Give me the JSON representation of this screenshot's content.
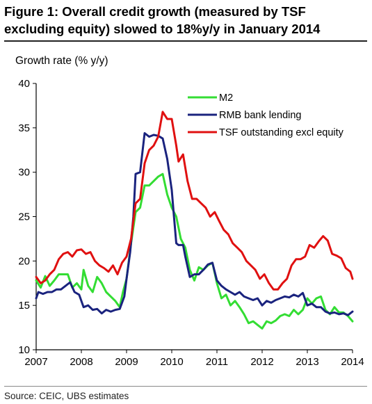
{
  "title": "Figure 1: Overall credit growth (measured by TSF excluding equity) slowed to 18%y/y in January 2014",
  "source": "Source: CEIC, UBS estimates",
  "chart_data": {
    "type": "line",
    "ylabel": "Growth rate (% y/y)",
    "xlabel": "",
    "ylim": [
      10,
      40
    ],
    "yticks": [
      10,
      15,
      20,
      25,
      30,
      35,
      40
    ],
    "xlim": [
      2007,
      2014
    ],
    "xticks": [
      2007,
      2008,
      2009,
      2010,
      2011,
      2012,
      2013,
      2014
    ],
    "legend_position": "top-right",
    "series": [
      {
        "name": "M2",
        "color": "#33dd33",
        "points": [
          [
            2007.0,
            17.8
          ],
          [
            2007.1,
            17.0
          ],
          [
            2007.2,
            18.3
          ],
          [
            2007.3,
            17.2
          ],
          [
            2007.4,
            17.8
          ],
          [
            2007.5,
            18.5
          ],
          [
            2007.6,
            18.5
          ],
          [
            2007.7,
            18.5
          ],
          [
            2007.8,
            17.0
          ],
          [
            2007.9,
            17.5
          ],
          [
            2008.0,
            16.8
          ],
          [
            2008.05,
            19.0
          ],
          [
            2008.15,
            17.2
          ],
          [
            2008.25,
            16.5
          ],
          [
            2008.35,
            18.2
          ],
          [
            2008.45,
            17.5
          ],
          [
            2008.55,
            16.5
          ],
          [
            2008.65,
            16.0
          ],
          [
            2008.75,
            15.5
          ],
          [
            2008.85,
            14.8
          ],
          [
            2008.92,
            16.5
          ],
          [
            2009.0,
            18.0
          ],
          [
            2009.1,
            22.0
          ],
          [
            2009.2,
            25.5
          ],
          [
            2009.3,
            26.0
          ],
          [
            2009.4,
            28.5
          ],
          [
            2009.5,
            28.5
          ],
          [
            2009.6,
            29.0
          ],
          [
            2009.7,
            29.5
          ],
          [
            2009.8,
            29.8
          ],
          [
            2009.9,
            27.5
          ],
          [
            2010.0,
            26.0
          ],
          [
            2010.1,
            25.0
          ],
          [
            2010.2,
            22.5
          ],
          [
            2010.3,
            21.5
          ],
          [
            2010.4,
            19.0
          ],
          [
            2010.5,
            17.8
          ],
          [
            2010.6,
            19.3
          ],
          [
            2010.7,
            19.0
          ],
          [
            2010.8,
            19.5
          ],
          [
            2010.9,
            19.8
          ],
          [
            2011.0,
            17.5
          ],
          [
            2011.1,
            15.8
          ],
          [
            2011.2,
            16.2
          ],
          [
            2011.3,
            15.0
          ],
          [
            2011.4,
            15.5
          ],
          [
            2011.5,
            14.8
          ],
          [
            2011.6,
            14.0
          ],
          [
            2011.7,
            13.0
          ],
          [
            2011.8,
            13.2
          ],
          [
            2011.9,
            12.8
          ],
          [
            2012.0,
            12.4
          ],
          [
            2012.1,
            13.2
          ],
          [
            2012.2,
            13.0
          ],
          [
            2012.3,
            13.3
          ],
          [
            2012.4,
            13.8
          ],
          [
            2012.5,
            14.0
          ],
          [
            2012.6,
            13.8
          ],
          [
            2012.7,
            14.5
          ],
          [
            2012.8,
            14.0
          ],
          [
            2012.9,
            14.5
          ],
          [
            2013.0,
            15.8
          ],
          [
            2013.1,
            15.2
          ],
          [
            2013.2,
            15.8
          ],
          [
            2013.3,
            16.0
          ],
          [
            2013.4,
            14.5
          ],
          [
            2013.5,
            14.0
          ],
          [
            2013.6,
            14.8
          ],
          [
            2013.7,
            14.2
          ],
          [
            2013.8,
            14.2
          ],
          [
            2013.9,
            13.8
          ],
          [
            2014.0,
            13.2
          ]
        ]
      },
      {
        "name": "RMB bank lending",
        "color": "#1a237e",
        "points": [
          [
            2007.0,
            15.8
          ],
          [
            2007.05,
            16.5
          ],
          [
            2007.15,
            16.3
          ],
          [
            2007.25,
            16.5
          ],
          [
            2007.35,
            16.5
          ],
          [
            2007.45,
            16.8
          ],
          [
            2007.55,
            16.8
          ],
          [
            2007.65,
            17.2
          ],
          [
            2007.75,
            17.6
          ],
          [
            2007.85,
            16.5
          ],
          [
            2007.95,
            16.2
          ],
          [
            2008.05,
            14.8
          ],
          [
            2008.15,
            15.0
          ],
          [
            2008.25,
            14.5
          ],
          [
            2008.35,
            14.6
          ],
          [
            2008.45,
            14.1
          ],
          [
            2008.55,
            14.5
          ],
          [
            2008.65,
            14.3
          ],
          [
            2008.75,
            14.5
          ],
          [
            2008.85,
            14.6
          ],
          [
            2008.95,
            16.0
          ],
          [
            2009.0,
            18.0
          ],
          [
            2009.08,
            21.0
          ],
          [
            2009.15,
            25.0
          ],
          [
            2009.2,
            29.8
          ],
          [
            2009.3,
            30.0
          ],
          [
            2009.4,
            34.4
          ],
          [
            2009.5,
            34.0
          ],
          [
            2009.6,
            34.2
          ],
          [
            2009.7,
            34.1
          ],
          [
            2009.8,
            33.8
          ],
          [
            2009.9,
            31.5
          ],
          [
            2010.0,
            28.0
          ],
          [
            2010.05,
            25.0
          ],
          [
            2010.1,
            22.0
          ],
          [
            2010.15,
            21.8
          ],
          [
            2010.25,
            21.8
          ],
          [
            2010.3,
            20.5
          ],
          [
            2010.4,
            18.2
          ],
          [
            2010.5,
            18.5
          ],
          [
            2010.6,
            18.5
          ],
          [
            2010.7,
            19.0
          ],
          [
            2010.8,
            19.6
          ],
          [
            2010.9,
            19.8
          ],
          [
            2011.0,
            17.8
          ],
          [
            2011.1,
            17.2
          ],
          [
            2011.2,
            16.8
          ],
          [
            2011.3,
            16.5
          ],
          [
            2011.4,
            16.2
          ],
          [
            2011.5,
            16.5
          ],
          [
            2011.6,
            16.0
          ],
          [
            2011.7,
            15.8
          ],
          [
            2011.8,
            15.6
          ],
          [
            2011.9,
            15.8
          ],
          [
            2012.0,
            15.0
          ],
          [
            2012.1,
            15.5
          ],
          [
            2012.2,
            15.3
          ],
          [
            2012.3,
            15.6
          ],
          [
            2012.4,
            15.8
          ],
          [
            2012.5,
            16.0
          ],
          [
            2012.6,
            15.9
          ],
          [
            2012.7,
            16.2
          ],
          [
            2012.8,
            16.0
          ],
          [
            2012.9,
            16.4
          ],
          [
            2013.0,
            15.0
          ],
          [
            2013.1,
            15.2
          ],
          [
            2013.2,
            14.8
          ],
          [
            2013.3,
            14.8
          ],
          [
            2013.4,
            14.3
          ],
          [
            2013.5,
            14.1
          ],
          [
            2013.6,
            14.2
          ],
          [
            2013.7,
            14.0
          ],
          [
            2013.8,
            14.1
          ],
          [
            2013.9,
            13.9
          ],
          [
            2014.0,
            14.3
          ]
        ]
      },
      {
        "name": "TSF outstanding excl equity",
        "color": "#e01010",
        "points": [
          [
            2007.0,
            18.2
          ],
          [
            2007.1,
            17.5
          ],
          [
            2007.2,
            17.8
          ],
          [
            2007.3,
            18.5
          ],
          [
            2007.4,
            19.0
          ],
          [
            2007.5,
            20.2
          ],
          [
            2007.6,
            20.8
          ],
          [
            2007.7,
            21.0
          ],
          [
            2007.8,
            20.5
          ],
          [
            2007.9,
            21.2
          ],
          [
            2008.0,
            21.3
          ],
          [
            2008.1,
            20.8
          ],
          [
            2008.2,
            21.0
          ],
          [
            2008.3,
            20.0
          ],
          [
            2008.4,
            19.5
          ],
          [
            2008.5,
            19.2
          ],
          [
            2008.6,
            18.8
          ],
          [
            2008.7,
            19.5
          ],
          [
            2008.8,
            18.5
          ],
          [
            2008.9,
            19.8
          ],
          [
            2009.0,
            20.5
          ],
          [
            2009.1,
            22.5
          ],
          [
            2009.2,
            26.5
          ],
          [
            2009.3,
            27.0
          ],
          [
            2009.4,
            31.0
          ],
          [
            2009.5,
            32.5
          ],
          [
            2009.6,
            33.0
          ],
          [
            2009.7,
            34.0
          ],
          [
            2009.8,
            36.8
          ],
          [
            2009.9,
            36.0
          ],
          [
            2010.0,
            36.0
          ],
          [
            2010.1,
            33.0
          ],
          [
            2010.15,
            31.2
          ],
          [
            2010.25,
            32.0
          ],
          [
            2010.35,
            29.0
          ],
          [
            2010.45,
            27.0
          ],
          [
            2010.55,
            27.0
          ],
          [
            2010.65,
            26.5
          ],
          [
            2010.75,
            26.0
          ],
          [
            2010.85,
            25.0
          ],
          [
            2010.95,
            25.5
          ],
          [
            2011.05,
            24.5
          ],
          [
            2011.15,
            23.5
          ],
          [
            2011.25,
            23.0
          ],
          [
            2011.35,
            22.0
          ],
          [
            2011.45,
            21.5
          ],
          [
            2011.55,
            21.0
          ],
          [
            2011.65,
            20.0
          ],
          [
            2011.75,
            19.5
          ],
          [
            2011.85,
            19.0
          ],
          [
            2011.95,
            18.0
          ],
          [
            2012.05,
            18.5
          ],
          [
            2012.15,
            17.5
          ],
          [
            2012.25,
            16.8
          ],
          [
            2012.35,
            16.8
          ],
          [
            2012.45,
            17.5
          ],
          [
            2012.55,
            18.0
          ],
          [
            2012.65,
            19.5
          ],
          [
            2012.75,
            20.2
          ],
          [
            2012.85,
            20.2
          ],
          [
            2012.95,
            20.5
          ],
          [
            2013.05,
            21.8
          ],
          [
            2013.15,
            21.5
          ],
          [
            2013.25,
            22.2
          ],
          [
            2013.35,
            22.8
          ],
          [
            2013.45,
            22.3
          ],
          [
            2013.55,
            20.8
          ],
          [
            2013.65,
            20.6
          ],
          [
            2013.75,
            20.3
          ],
          [
            2013.85,
            19.2
          ],
          [
            2013.95,
            18.8
          ],
          [
            2014.0,
            18.0
          ]
        ]
      }
    ]
  }
}
